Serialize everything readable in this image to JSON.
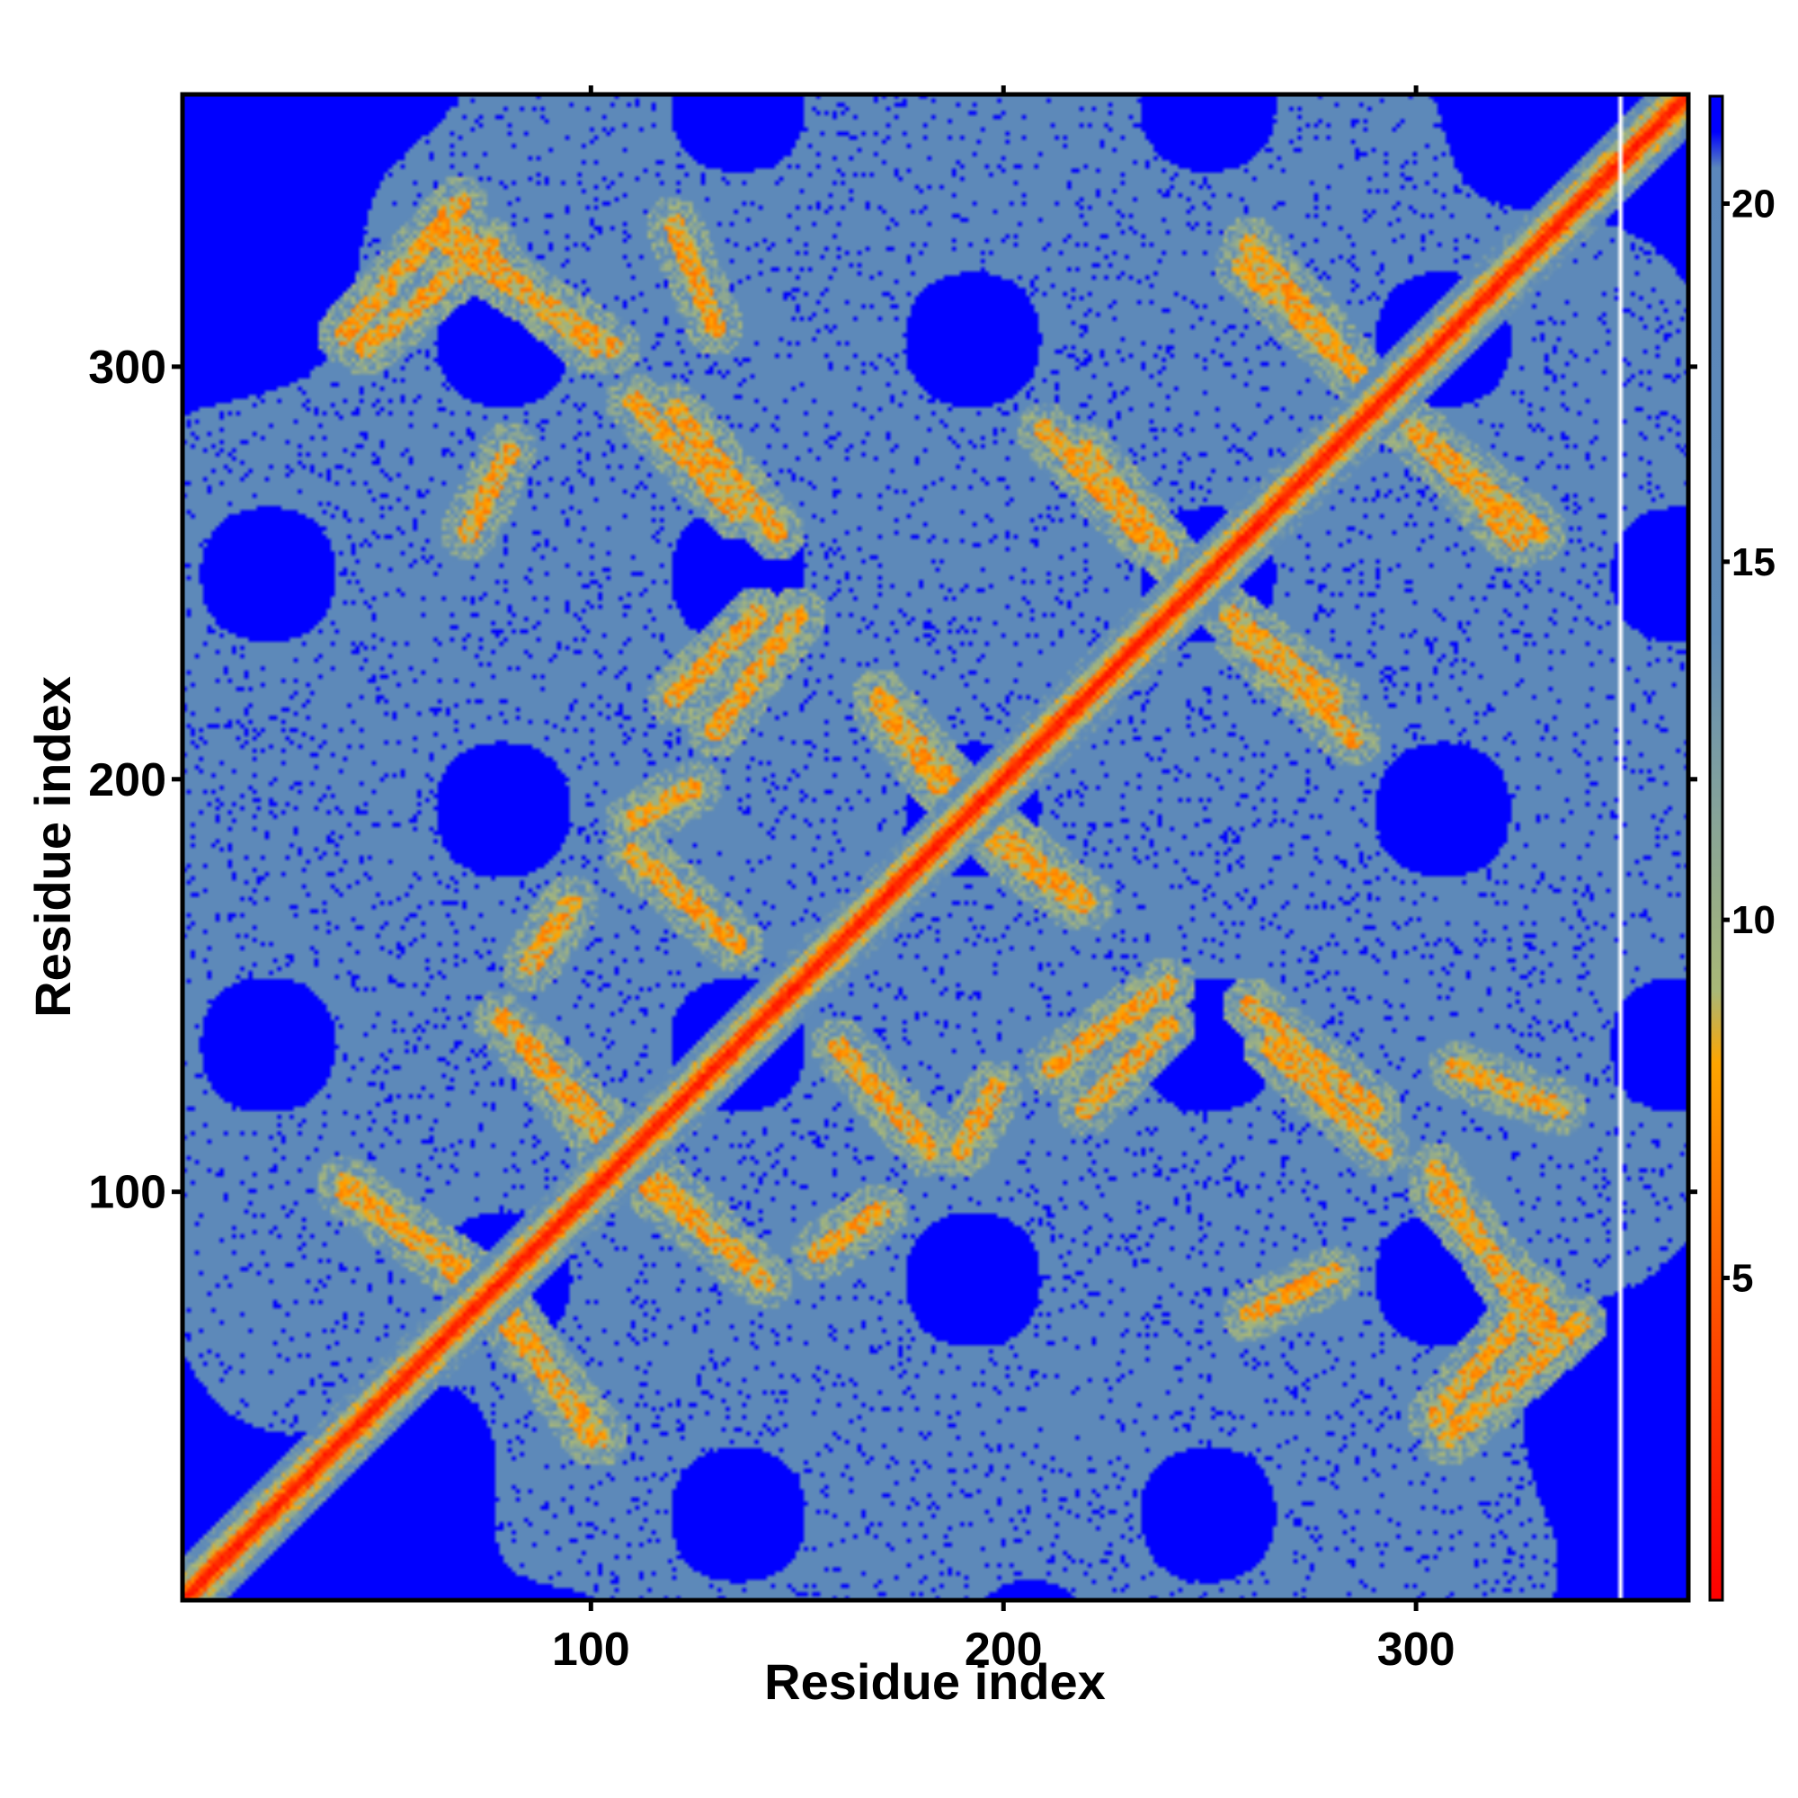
{
  "chart_data": {
    "type": "heatmap",
    "title": "",
    "xlabel": "Residue index",
    "ylabel": "Residue index",
    "n_residues": 366,
    "xlim": [
      1,
      366
    ],
    "ylim": [
      1,
      366
    ],
    "x_ticks": [
      100,
      200,
      300
    ],
    "y_ticks": [
      100,
      200,
      300
    ],
    "colorbar": {
      "ticks": [
        5,
        10,
        15,
        20
      ],
      "range": [
        0.5,
        21.5
      ],
      "stops": [
        {
          "value": 0.5,
          "color": "#ff0000"
        },
        {
          "value": 4.0,
          "color": "#ff4500"
        },
        {
          "value": 7.0,
          "color": "#ff8c00"
        },
        {
          "value": 8.0,
          "color": "#ffa500"
        },
        {
          "value": 9.0,
          "color": "#a9b877"
        },
        {
          "value": 12.0,
          "color": "#7f9fa0"
        },
        {
          "value": 14.0,
          "color": "#5f8bb8"
        },
        {
          "value": 20.5,
          "color": "#5b87bb"
        },
        {
          "value": 21.0,
          "color": "#0000ff"
        }
      ]
    },
    "diagonal_band": {
      "from": 1,
      "to": 366
    },
    "contact_bands": [
      {
        "name": "anti-1",
        "x0": 70,
        "y0": 80,
        "x1": 102,
        "y1": 40,
        "strength": 0.9
      },
      {
        "name": "anti-2",
        "x0": 40,
        "y0": 100,
        "x1": 70,
        "y1": 80,
        "strength": 0.8
      },
      {
        "name": "anti-3",
        "x0": 78,
        "y0": 142,
        "x1": 110,
        "y1": 108,
        "strength": 0.8
      },
      {
        "name": "anti-4",
        "x0": 108,
        "y0": 106,
        "x1": 140,
        "y1": 80,
        "strength": 0.85
      },
      {
        "name": "anti-5",
        "x0": 110,
        "y0": 182,
        "x1": 135,
        "y1": 160,
        "strength": 0.85
      },
      {
        "name": "anti-6",
        "x0": 160,
        "y0": 135,
        "x1": 182,
        "y1": 110,
        "strength": 0.85
      },
      {
        "name": "anti-7",
        "x0": 120,
        "y0": 220,
        "x1": 140,
        "y1": 240,
        "strength": 0.8
      },
      {
        "name": "anti-8",
        "x0": 170,
        "y0": 220,
        "x1": 188,
        "y1": 198,
        "strength": 0.7
      },
      {
        "name": "anti-9",
        "x0": 198,
        "y0": 185,
        "x1": 218,
        "y1": 170,
        "strength": 0.7
      },
      {
        "name": "anti-10",
        "x0": 212,
        "y0": 130,
        "x1": 240,
        "y1": 150,
        "strength": 0.8
      },
      {
        "name": "anti-11",
        "x0": 265,
        "y0": 135,
        "x1": 292,
        "y1": 110,
        "strength": 0.75
      },
      {
        "name": "anti-12",
        "x0": 258,
        "y0": 235,
        "x1": 285,
        "y1": 210,
        "strength": 0.8
      },
      {
        "name": "anti-13",
        "x0": 220,
        "y0": 280,
        "x1": 240,
        "y1": 255,
        "strength": 0.75
      },
      {
        "name": "anti-14",
        "x0": 260,
        "y0": 330,
        "x1": 285,
        "y1": 300,
        "strength": 0.85
      },
      {
        "name": "anti-15",
        "x0": 295,
        "y0": 290,
        "x1": 325,
        "y1": 258,
        "strength": 0.85
      },
      {
        "name": "anti-16",
        "x0": 40,
        "y0": 308,
        "x1": 68,
        "y1": 340,
        "strength": 0.85
      },
      {
        "name": "anti-17",
        "x0": 65,
        "y0": 330,
        "x1": 105,
        "y1": 305,
        "strength": 0.8
      },
      {
        "name": "anti-18",
        "x0": 120,
        "y0": 290,
        "x1": 145,
        "y1": 260,
        "strength": 0.75
      },
      {
        "name": "anti-19",
        "x0": 305,
        "y0": 100,
        "x1": 335,
        "y1": 65,
        "strength": 0.8
      },
      {
        "name": "anti-20",
        "x0": 305,
        "y0": 45,
        "x1": 330,
        "y1": 75,
        "strength": 0.8
      },
      {
        "name": "anti-21",
        "x0": 310,
        "y0": 130,
        "x1": 335,
        "y1": 120,
        "strength": 0.6
      },
      {
        "name": "anti-22",
        "x0": 280,
        "y0": 80,
        "x1": 260,
        "y1": 70,
        "strength": 0.5
      },
      {
        "name": "anti-23",
        "x0": 155,
        "y0": 85,
        "x1": 170,
        "y1": 95,
        "strength": 0.6
      },
      {
        "name": "anti-24",
        "x0": 190,
        "y0": 110,
        "x1": 198,
        "y1": 125,
        "strength": 0.55
      }
    ]
  }
}
